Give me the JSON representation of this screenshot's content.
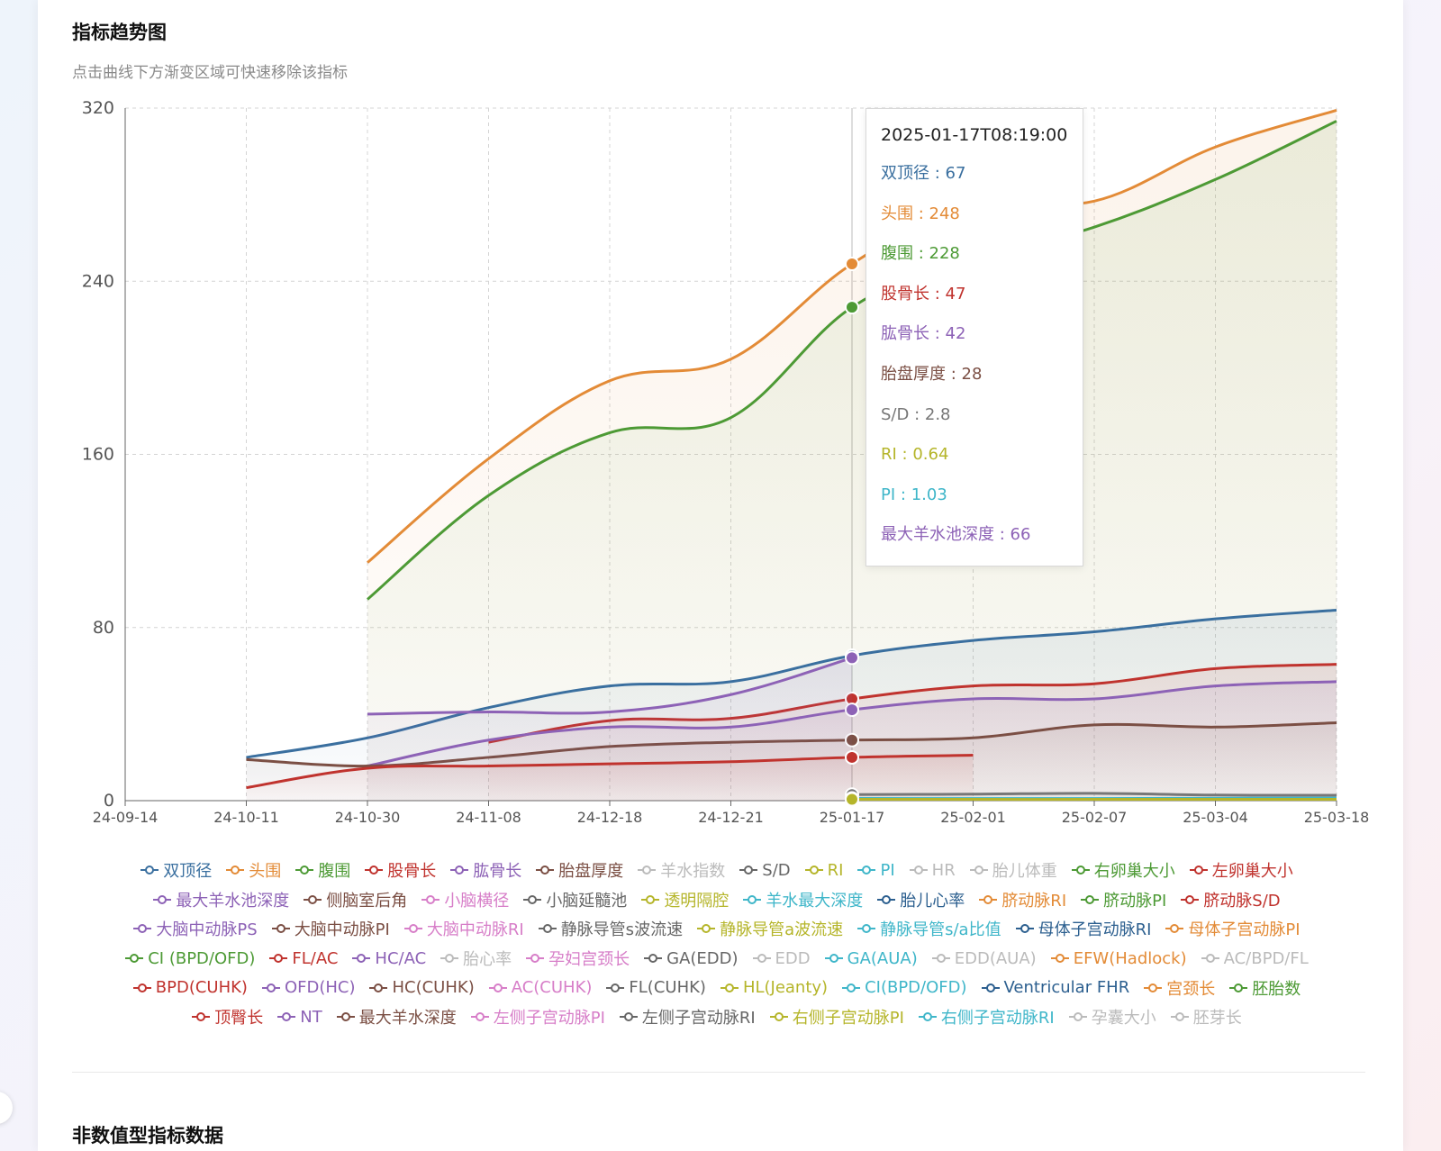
{
  "page": {
    "title": "指标趋势图",
    "subtitle": "点击曲线下方渐变区域可快速移除该指标",
    "section2_title": "非数值型指标数据"
  },
  "tooltip": {
    "time": "2025-01-17T08:19:00",
    "rows": [
      {
        "label": "双顶径",
        "value": "67",
        "color": "#3a6f9f"
      },
      {
        "label": "头围",
        "value": "248",
        "color": "#e38b37"
      },
      {
        "label": "腹围",
        "value": "228",
        "color": "#4d9a35"
      },
      {
        "label": "股骨长",
        "value": "47",
        "color": "#c0332e"
      },
      {
        "label": "肱骨长",
        "value": "42",
        "color": "#8d62b6"
      },
      {
        "label": "胎盘厚度",
        "value": "28",
        "color": "#7b4f44"
      },
      {
        "label": "S/D",
        "value": "2.8",
        "color": "#777777"
      },
      {
        "label": "RI",
        "value": "0.64",
        "color": "#b5b52a"
      },
      {
        "label": "PI",
        "value": "1.03",
        "color": "#3fb6c9"
      },
      {
        "label": "最大羊水池深度",
        "value": "66",
        "color": "#8d62b6"
      }
    ]
  },
  "legend": [
    [
      {
        "label": "双顶径",
        "color": "#3a6f9f"
      },
      {
        "label": "头围",
        "color": "#e38b37"
      },
      {
        "label": "腹围",
        "color": "#4d9a35"
      },
      {
        "label": "股骨长",
        "color": "#c0332e"
      },
      {
        "label": "肱骨长",
        "color": "#8d62b6"
      },
      {
        "label": "胎盘厚度",
        "color": "#7b4f44"
      },
      {
        "label": "羊水指数",
        "color": "#bbbbbb"
      },
      {
        "label": "S/D",
        "color": "#666666"
      },
      {
        "label": "RI",
        "color": "#b5b52a"
      },
      {
        "label": "PI",
        "color": "#3fb6c9"
      },
      {
        "label": "HR",
        "color": "#bbbbbb"
      },
      {
        "label": "胎儿体重",
        "color": "#bbbbbb"
      },
      {
        "label": "右卵巢大小",
        "color": "#4d9a35"
      },
      {
        "label": "左卵巢大小",
        "color": "#c0332e"
      }
    ],
    [
      {
        "label": "最大羊水池深度",
        "color": "#8d62b6"
      },
      {
        "label": "侧脑室后角",
        "color": "#7b4f44"
      },
      {
        "label": "小脑横径",
        "color": "#d77ec8"
      },
      {
        "label": "小脑延髓池",
        "color": "#666666"
      },
      {
        "label": "透明隔腔",
        "color": "#b5b52a"
      },
      {
        "label": "羊水最大深度",
        "color": "#3fb6c9"
      },
      {
        "label": "胎儿心率",
        "color": "#2c5f8f"
      },
      {
        "label": "脐动脉RI",
        "color": "#e38b37"
      },
      {
        "label": "脐动脉PI",
        "color": "#4d9a35"
      },
      {
        "label": "脐动脉S/D",
        "color": "#c0332e"
      }
    ],
    [
      {
        "label": "大脑中动脉PS",
        "color": "#8d62b6"
      },
      {
        "label": "大脑中动脉PI",
        "color": "#7b4f44"
      },
      {
        "label": "大脑中动脉RI",
        "color": "#d77ec8"
      },
      {
        "label": "静脉导管s波流速",
        "color": "#666666"
      },
      {
        "label": "静脉导管a波流速",
        "color": "#b5b52a"
      },
      {
        "label": "静脉导管s/a比值",
        "color": "#3fb6c9"
      },
      {
        "label": "母体子宫动脉RI",
        "color": "#2c5f8f"
      },
      {
        "label": "母体子宫动脉PI",
        "color": "#e38b37"
      }
    ],
    [
      {
        "label": "CI (BPD/OFD)",
        "color": "#4d9a35"
      },
      {
        "label": "FL/AC",
        "color": "#c0332e"
      },
      {
        "label": "HC/AC",
        "color": "#8d62b6"
      },
      {
        "label": "胎心率",
        "color": "#bbbbbb"
      },
      {
        "label": "孕妇宫颈长",
        "color": "#d77ec8"
      },
      {
        "label": "GA(EDD)",
        "color": "#666666"
      },
      {
        "label": "EDD",
        "color": "#bbbbbb"
      },
      {
        "label": "GA(AUA)",
        "color": "#3fb6c9"
      },
      {
        "label": "EDD(AUA)",
        "color": "#bbbbbb"
      },
      {
        "label": "EFW(Hadlock)",
        "color": "#e38b37"
      },
      {
        "label": "AC/BPD/FL",
        "color": "#bbbbbb"
      }
    ],
    [
      {
        "label": "BPD(CUHK)",
        "color": "#c0332e"
      },
      {
        "label": "OFD(HC)",
        "color": "#8d62b6"
      },
      {
        "label": "HC(CUHK)",
        "color": "#7b4f44"
      },
      {
        "label": "AC(CUHK)",
        "color": "#d77ec8"
      },
      {
        "label": "FL(CUHK)",
        "color": "#666666"
      },
      {
        "label": "HL(Jeanty)",
        "color": "#b5b52a"
      },
      {
        "label": "CI(BPD/OFD)",
        "color": "#3fb6c9"
      },
      {
        "label": "Ventricular FHR",
        "color": "#2c5f8f"
      },
      {
        "label": "宫颈长",
        "color": "#e38b37"
      },
      {
        "label": "胚胎数",
        "color": "#4d9a35"
      }
    ],
    [
      {
        "label": "顶臀长",
        "color": "#c0332e"
      },
      {
        "label": "NT",
        "color": "#8d62b6"
      },
      {
        "label": "最大羊水深度",
        "color": "#7b4f44"
      },
      {
        "label": "左侧子宫动脉PI",
        "color": "#d77ec8"
      },
      {
        "label": "左侧子宫动脉RI",
        "color": "#666666"
      },
      {
        "label": "右侧子宫动脉PI",
        "color": "#b5b52a"
      },
      {
        "label": "右侧子宫动脉RI",
        "color": "#3fb6c9"
      },
      {
        "label": "孕囊大小",
        "color": "#bbbbbb"
      },
      {
        "label": "胚芽长",
        "color": "#bbbbbb"
      }
    ]
  ],
  "chart_data": {
    "type": "line",
    "title": "指标趋势图",
    "categories": [
      "24-09-14",
      "24-10-11",
      "24-10-30",
      "24-11-08",
      "24-12-18",
      "24-12-21",
      "25-01-17",
      "25-02-01",
      "25-02-07",
      "25-03-04",
      "25-03-18"
    ],
    "yticks": [
      "0",
      "80",
      "160",
      "240",
      "320"
    ],
    "ylim": [
      0,
      320
    ],
    "grid": true,
    "tooltip_index": 6,
    "series": [
      {
        "name": "头围",
        "color": "#e38b37",
        "values": [
          null,
          null,
          110,
          158,
          194,
          204,
          248,
          276,
          277,
          302,
          319
        ]
      },
      {
        "name": "腹围",
        "color": "#4d9a35",
        "values": [
          null,
          null,
          93,
          141,
          170,
          177,
          228,
          250,
          265,
          287,
          314
        ]
      },
      {
        "name": "双顶径",
        "color": "#3a6f9f",
        "values": [
          null,
          20,
          29,
          43,
          53,
          55,
          67,
          74,
          78,
          84,
          88
        ]
      },
      {
        "name": "股骨长",
        "color": "#c0332e",
        "values": [
          null,
          null,
          null,
          27,
          37,
          38,
          47,
          53,
          54,
          61,
          63
        ]
      },
      {
        "name": "肱骨长",
        "color": "#8d62b6",
        "values": [
          null,
          null,
          16,
          28,
          34,
          34,
          42,
          47,
          47,
          53,
          55
        ]
      },
      {
        "name": "胎盘厚度",
        "color": "#7b4f44",
        "values": [
          null,
          19,
          16,
          20,
          25,
          27,
          28,
          29,
          35,
          34,
          36
        ]
      },
      {
        "name": "最大羊水池深度",
        "color": "#8d62b6",
        "values": [
          null,
          null,
          40,
          41,
          41,
          49,
          66,
          null,
          null,
          null,
          null
        ]
      },
      {
        "name": "左卵巢大小",
        "color": "#c0332e",
        "values": [
          null,
          6,
          15,
          16,
          17,
          18,
          20,
          21,
          null,
          null,
          null
        ]
      },
      {
        "name": "S/D",
        "color": "#777777",
        "values": [
          null,
          null,
          null,
          null,
          null,
          null,
          2.8,
          3.0,
          3.4,
          2.6,
          2.5
        ]
      },
      {
        "name": "PI",
        "color": "#3fb6c9",
        "values": [
          null,
          null,
          null,
          null,
          null,
          null,
          1.03,
          1.0,
          1.0,
          1.1,
          1.2
        ]
      },
      {
        "name": "RI",
        "color": "#b5b52a",
        "values": [
          null,
          null,
          null,
          null,
          null,
          null,
          0.64,
          0.6,
          0.6,
          0.6,
          0.6
        ]
      }
    ]
  }
}
